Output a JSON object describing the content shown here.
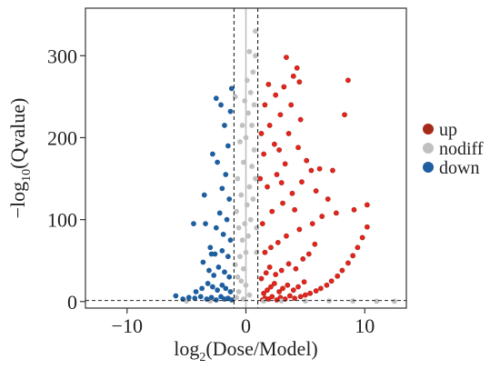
{
  "chart_data": {
    "type": "scatter",
    "title": "",
    "xlabel_main": "log",
    "xlabel_sub": "2",
    "xlabel_rest": "(Dose/Model)",
    "ylabel_prefix": "−log",
    "ylabel_sub": "10",
    "ylabel_rest": "(Qvalue)",
    "xlim": [
      -13.5,
      13.5
    ],
    "ylim": [
      -8,
      358
    ],
    "x_ticks": [
      -10,
      0,
      10
    ],
    "x_tick_labels": [
      "−10",
      "0",
      "10"
    ],
    "y_ticks": [
      0,
      100,
      200,
      300
    ],
    "y_tick_labels": [
      "0",
      "100",
      "200",
      "300"
    ],
    "thresholds": {
      "x": [
        -1,
        1
      ],
      "y": 1.3
    },
    "zero_line_x": 0,
    "grid": false,
    "legend_position": "right",
    "series": [
      {
        "name": "up",
        "color": "#a52a1a",
        "fill_color": "#e8221d",
        "points": [
          [
            1.4,
            2
          ],
          [
            1.6,
            4
          ],
          [
            1.9,
            3
          ],
          [
            2.2,
            6
          ],
          [
            2.6,
            2
          ],
          [
            2.9,
            5
          ],
          [
            3.3,
            3
          ],
          [
            3.7,
            7
          ],
          [
            4.1,
            4
          ],
          [
            4.6,
            6
          ],
          [
            5.0,
            8
          ],
          [
            5.4,
            10
          ],
          [
            5.9,
            13
          ],
          [
            6.3,
            16
          ],
          [
            6.8,
            20
          ],
          [
            7.2,
            25
          ],
          [
            7.7,
            31
          ],
          [
            8.1,
            38
          ],
          [
            8.6,
            47
          ],
          [
            9.0,
            56
          ],
          [
            9.4,
            66
          ],
          [
            9.8,
            78
          ],
          [
            10.2,
            91
          ],
          [
            1.5,
            10
          ],
          [
            1.8,
            14
          ],
          [
            2.1,
            18
          ],
          [
            2.4,
            22
          ],
          [
            2.8,
            12
          ],
          [
            3.1,
            16
          ],
          [
            3.5,
            20
          ],
          [
            4.0,
            14
          ],
          [
            4.4,
            18
          ],
          [
            4.9,
            24
          ],
          [
            1.3,
            28
          ],
          [
            1.7,
            35
          ],
          [
            2.0,
            42
          ],
          [
            2.5,
            33
          ],
          [
            3.0,
            38
          ],
          [
            3.6,
            46
          ],
          [
            4.2,
            40
          ],
          [
            4.8,
            52
          ],
          [
            5.3,
            58
          ],
          [
            5.8,
            70
          ],
          [
            1.6,
            60
          ],
          [
            2.1,
            66
          ],
          [
            2.7,
            72
          ],
          [
            3.4,
            80
          ],
          [
            4.5,
            88
          ],
          [
            5.6,
            95
          ],
          [
            6.4,
            104
          ],
          [
            1.4,
            95
          ],
          [
            2.2,
            110
          ],
          [
            3.1,
            120
          ],
          [
            3.9,
            132
          ],
          [
            4.7,
            146
          ],
          [
            5.5,
            160
          ],
          [
            6.2,
            162
          ],
          [
            7.3,
            160
          ],
          [
            1.8,
            140
          ],
          [
            2.6,
            155
          ],
          [
            3.3,
            168
          ],
          [
            1.5,
            180
          ],
          [
            2.4,
            192
          ],
          [
            3.6,
            205
          ],
          [
            4.4,
            188
          ],
          [
            2.0,
            215
          ],
          [
            2.9,
            228
          ],
          [
            3.8,
            240
          ],
          [
            4.6,
            222
          ],
          [
            1.6,
            240
          ],
          [
            2.5,
            252
          ],
          [
            3.2,
            262
          ],
          [
            4.0,
            275
          ],
          [
            3.4,
            298
          ],
          [
            4.3,
            285
          ],
          [
            4.5,
            268
          ],
          [
            8.3,
            228
          ],
          [
            8.6,
            270
          ],
          [
            10.2,
            118
          ],
          [
            1.9,
            265
          ],
          [
            1.2,
            150
          ],
          [
            1.3,
            205
          ],
          [
            5.1,
            172
          ],
          [
            2.8,
            185
          ],
          [
            6.9,
            125
          ],
          [
            7.6,
            108
          ],
          [
            9.1,
            112
          ],
          [
            3.0,
            145
          ],
          [
            4.1,
            112
          ],
          [
            5.9,
            135
          ]
        ]
      },
      {
        "name": "nodiff",
        "color": "#c0c0c0",
        "points": [
          [
            -0.8,
            5
          ],
          [
            -0.6,
            12
          ],
          [
            -0.4,
            25
          ],
          [
            -0.2,
            40
          ],
          [
            0.0,
            60
          ],
          [
            0.2,
            80
          ],
          [
            0.4,
            100
          ],
          [
            0.6,
            125
          ],
          [
            0.8,
            150
          ],
          [
            -0.7,
            30
          ],
          [
            -0.5,
            55
          ],
          [
            -0.3,
            75
          ],
          [
            -0.1,
            95
          ],
          [
            0.1,
            118
          ],
          [
            0.3,
            140
          ],
          [
            0.5,
            165
          ],
          [
            0.7,
            185
          ],
          [
            -0.6,
            90
          ],
          [
            -0.4,
            130
          ],
          [
            -0.2,
            170
          ],
          [
            0.0,
            200
          ],
          [
            0.2,
            230
          ],
          [
            0.4,
            255
          ],
          [
            0.6,
            280
          ],
          [
            0.8,
            300
          ],
          [
            -0.3,
            215
          ],
          [
            -0.1,
            245
          ],
          [
            0.1,
            270
          ],
          [
            0.3,
            305
          ],
          [
            -0.5,
            195
          ],
          [
            0.5,
            215
          ],
          [
            0.7,
            240
          ],
          [
            -0.7,
            150
          ],
          [
            -0.8,
            110
          ],
          [
            0.9,
            90
          ],
          [
            0.9,
            60
          ],
          [
            -0.9,
            45
          ],
          [
            0.0,
            20
          ],
          [
            0.3,
            8
          ],
          [
            -0.2,
            3
          ],
          [
            1.5,
            0.5
          ],
          [
            3.0,
            0.8
          ],
          [
            5.0,
            0.6
          ],
          [
            7.0,
            0.9
          ],
          [
            9.0,
            0.7
          ],
          [
            11.0,
            0.4
          ],
          [
            12.5,
            0.3
          ],
          [
            -3.0,
            0.7
          ],
          [
            -5.0,
            0.5
          ],
          [
            -0.9,
            250
          ],
          [
            0.8,
            330
          ]
        ]
      },
      {
        "name": "down",
        "color": "#1f5f9f",
        "points": [
          [
            -1.2,
            2
          ],
          [
            -1.5,
            4
          ],
          [
            -1.8,
            3
          ],
          [
            -2.1,
            6
          ],
          [
            -2.5,
            2
          ],
          [
            -2.9,
            5
          ],
          [
            -3.3,
            3
          ],
          [
            -3.8,
            6
          ],
          [
            -4.3,
            4
          ],
          [
            -4.8,
            5
          ],
          [
            -5.3,
            3
          ],
          [
            -5.9,
            7
          ],
          [
            -1.3,
            12
          ],
          [
            -1.7,
            16
          ],
          [
            -2.0,
            20
          ],
          [
            -2.4,
            14
          ],
          [
            -2.8,
            18
          ],
          [
            -3.2,
            22
          ],
          [
            -3.7,
            16
          ],
          [
            -4.2,
            12
          ],
          [
            -1.4,
            30
          ],
          [
            -1.8,
            36
          ],
          [
            -2.3,
            42
          ],
          [
            -2.7,
            32
          ],
          [
            -3.1,
            38
          ],
          [
            -3.6,
            48
          ],
          [
            -1.5,
            55
          ],
          [
            -2.0,
            62
          ],
          [
            -2.6,
            58
          ],
          [
            -3.0,
            66
          ],
          [
            -1.3,
            75
          ],
          [
            -1.9,
            82
          ],
          [
            -2.5,
            90
          ],
          [
            -1.6,
            100
          ],
          [
            -2.2,
            108
          ],
          [
            -3.4,
            95
          ],
          [
            -1.4,
            125
          ],
          [
            -2.0,
            138
          ],
          [
            -1.7,
            155
          ],
          [
            -2.4,
            170
          ],
          [
            -1.5,
            190
          ],
          [
            -2.8,
            180
          ],
          [
            -1.8,
            215
          ],
          [
            -2.1,
            240
          ],
          [
            -2.5,
            248
          ],
          [
            -3.5,
            130
          ],
          [
            -4.4,
            95
          ],
          [
            -1.2,
            260
          ],
          [
            -1.3,
            232
          ],
          [
            -2.9,
            58
          ]
        ]
      }
    ],
    "legend": [
      {
        "name": "up",
        "color": "#a52a1a"
      },
      {
        "name": "nodiff",
        "color": "#c0c0c0"
      },
      {
        "name": "down",
        "color": "#1f5f9f"
      }
    ]
  }
}
